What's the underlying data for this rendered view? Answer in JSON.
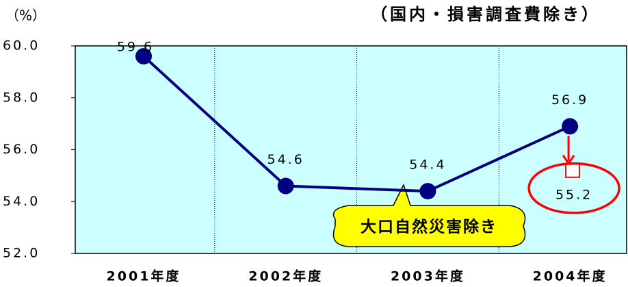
{
  "chart_data": {
    "type": "line",
    "subtitle": "（国内・損害調査費除き）",
    "y_label": "（%）",
    "categories": [
      "2001年度",
      "2002年度",
      "2003年度",
      "2004年度"
    ],
    "series": [
      {
        "name": null,
        "color": "#000080",
        "values": [
          59.6,
          54.6,
          54.4,
          56.9
        ]
      }
    ],
    "ylim": [
      52,
      60
    ],
    "yticks": [
      {
        "value": 52,
        "label": "52.0"
      },
      {
        "value": 54,
        "label": "54.0"
      },
      {
        "value": 56,
        "label": "56.0"
      },
      {
        "value": 58,
        "label": "58.0"
      },
      {
        "value": 60,
        "label": "60.0"
      }
    ],
    "grid": true,
    "background": "#ccffff",
    "adjusted": {
      "value": 55.2,
      "color": "#ff0000"
    },
    "annotation": "大口自然災害除き"
  }
}
